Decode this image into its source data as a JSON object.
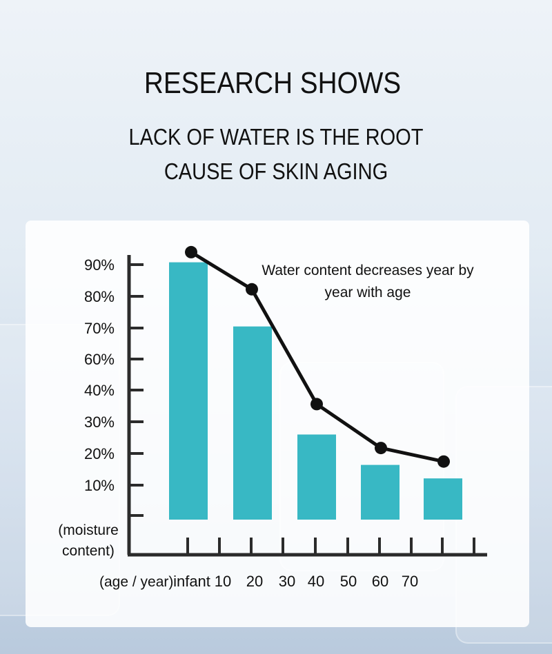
{
  "header": {
    "title": "RESEARCH SHOWS",
    "subtitle_line1": "LACK OF WATER IS THE ROOT",
    "subtitle_line2": "CAUSE OF SKIN AGING"
  },
  "colors": {
    "bar": "#38b8c4",
    "line": "#111111",
    "axis": "#2b2b2b"
  },
  "chart_data": {
    "type": "bar",
    "annotation_line1": "Water content decreases year by",
    "annotation_line2": "year with age",
    "ylabel_line1": "(moisture",
    "ylabel_line2": "content)",
    "xlabel": "(age / year)",
    "y_tick_labels": [
      "90%",
      "80%",
      "70%",
      "60%",
      "40%",
      "30%",
      "20%",
      "10%"
    ],
    "x_tick_labels": [
      "infant",
      "10",
      "20",
      "30",
      "40",
      "50",
      "60",
      "70"
    ],
    "bar_categories": [
      "infant",
      "20",
      "40",
      "60",
      "70"
    ],
    "bar_values": [
      86,
      67,
      35,
      26,
      22
    ],
    "line_values": [
      89,
      78,
      44,
      31,
      27
    ],
    "ylim": [
      0,
      95
    ],
    "grid": false,
    "legend": "none"
  }
}
